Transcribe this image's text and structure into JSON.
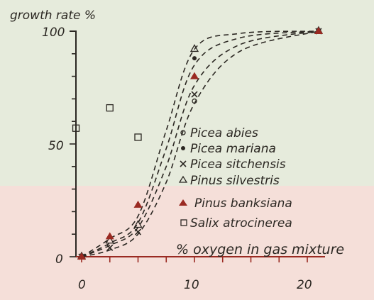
{
  "chart_data": {
    "type": "scatter",
    "ylabel": "growth rate %",
    "xlabel": "% oxygen in gas mixture",
    "xlim": [
      0,
      22
    ],
    "ylim": [
      0,
      100
    ],
    "xticks": [
      "0",
      "10",
      "20"
    ],
    "yticks": [
      "0",
      "50",
      "100"
    ],
    "colors": {
      "ink": "#2b2722",
      "axis_red": "#9a2a22",
      "bg_top": "#e6ebdc",
      "bg_bottom": "#f5dfd9"
    },
    "series": [
      {
        "name": "Picea abies",
        "marker": "open-circle",
        "points": [
          [
            0,
            0
          ],
          [
            10,
            69
          ],
          [
            21,
            100
          ]
        ]
      },
      {
        "name": "Picea mariana",
        "marker": "filled-circle",
        "points": [
          [
            0,
            0
          ],
          [
            10,
            88
          ],
          [
            21,
            100
          ]
        ]
      },
      {
        "name": "Picea sitchensis",
        "marker": "cross",
        "points": [
          [
            0,
            0
          ],
          [
            2.5,
            4
          ],
          [
            5,
            11
          ],
          [
            10,
            72
          ],
          [
            21,
            100
          ]
        ]
      },
      {
        "name": "Pinus silvestris",
        "marker": "open-triangle",
        "points": [
          [
            0,
            0
          ],
          [
            2.5,
            7
          ],
          [
            5,
            14
          ],
          [
            10,
            92
          ],
          [
            21,
            100
          ]
        ]
      },
      {
        "name": "Pinus banksiana",
        "marker": "filled-triangle",
        "points": [
          [
            0,
            0
          ],
          [
            2.5,
            9
          ],
          [
            5,
            23
          ],
          [
            10,
            80
          ],
          [
            21,
            100
          ]
        ]
      },
      {
        "name": "Salix atrocinerea",
        "marker": "open-square",
        "points": [
          [
            -0.5,
            57
          ],
          [
            2.5,
            66
          ],
          [
            5,
            53
          ]
        ]
      }
    ],
    "curves": [
      [
        [
          0,
          0
        ],
        [
          2.5,
          6
        ],
        [
          5,
          15
        ],
        [
          7.5,
          48
        ],
        [
          10,
          85
        ],
        [
          14,
          97
        ],
        [
          21,
          100
        ]
      ],
      [
        [
          0,
          0
        ],
        [
          2.5,
          5
        ],
        [
          5,
          13
        ],
        [
          7.5,
          40
        ],
        [
          10,
          76
        ],
        [
          14,
          94
        ],
        [
          21,
          100
        ]
      ],
      [
        [
          0,
          0
        ],
        [
          2.5,
          3
        ],
        [
          5,
          10
        ],
        [
          7.5,
          33
        ],
        [
          10,
          68
        ],
        [
          14,
          91
        ],
        [
          21,
          100
        ]
      ],
      [
        [
          0,
          0
        ],
        [
          2.5,
          8
        ],
        [
          5,
          18
        ],
        [
          7.5,
          56
        ],
        [
          10,
          92
        ],
        [
          14,
          99
        ],
        [
          21,
          100
        ]
      ]
    ]
  }
}
